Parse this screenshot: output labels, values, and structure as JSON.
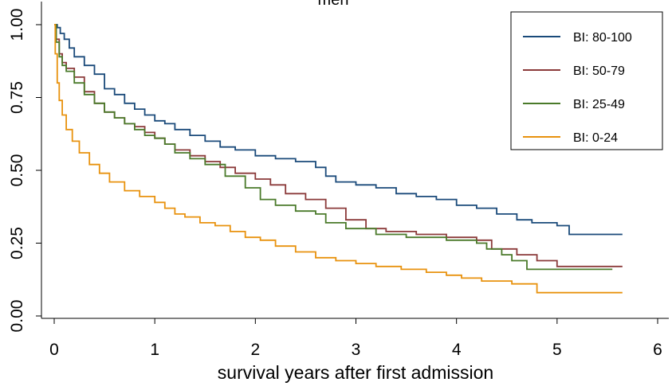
{
  "chart_data": {
    "type": "line",
    "title": "men",
    "xlabel": "survival years after first admission",
    "ylabel": "",
    "xlim": [
      0,
      6
    ],
    "ylim": [
      0,
      1
    ],
    "xticks": [
      0,
      1,
      2,
      3,
      4,
      5,
      6
    ],
    "xtick_labels": [
      "0",
      "1",
      "2",
      "3",
      "4",
      "5",
      "6"
    ],
    "yticks": [
      0,
      0.25,
      0.5,
      0.75,
      1.0
    ],
    "ytick_labels": [
      "0.00",
      "0.25",
      "0.50",
      "0.75",
      "1.00"
    ],
    "legend_position": "top-right",
    "step": true,
    "series": [
      {
        "name": "BI: 80-100",
        "color": "#1a4a7a",
        "x": [
          0,
          0.03,
          0.06,
          0.1,
          0.15,
          0.2,
          0.3,
          0.4,
          0.5,
          0.6,
          0.7,
          0.8,
          0.9,
          1.0,
          1.1,
          1.2,
          1.35,
          1.5,
          1.65,
          1.8,
          2.0,
          2.2,
          2.4,
          2.6,
          2.7,
          2.8,
          3.0,
          3.2,
          3.4,
          3.6,
          3.8,
          4.0,
          4.2,
          4.4,
          4.6,
          4.75,
          5.0,
          5.12,
          5.65
        ],
        "y": [
          1.0,
          0.99,
          0.97,
          0.95,
          0.92,
          0.89,
          0.86,
          0.83,
          0.78,
          0.76,
          0.73,
          0.71,
          0.69,
          0.67,
          0.66,
          0.64,
          0.62,
          0.6,
          0.58,
          0.57,
          0.55,
          0.54,
          0.53,
          0.51,
          0.48,
          0.46,
          0.45,
          0.44,
          0.42,
          0.41,
          0.4,
          0.38,
          0.37,
          0.35,
          0.33,
          0.32,
          0.31,
          0.28,
          0.28
        ]
      },
      {
        "name": "BI: 50-79",
        "color": "#8b3a3a",
        "x": [
          0,
          0.02,
          0.05,
          0.08,
          0.12,
          0.2,
          0.3,
          0.4,
          0.5,
          0.6,
          0.7,
          0.8,
          0.9,
          1.0,
          1.1,
          1.2,
          1.35,
          1.5,
          1.65,
          1.8,
          2.0,
          2.15,
          2.3,
          2.5,
          2.7,
          2.9,
          3.1,
          3.3,
          3.6,
          3.9,
          4.2,
          4.35,
          4.6,
          4.8,
          5.0,
          5.65
        ],
        "y": [
          1.0,
          0.95,
          0.9,
          0.87,
          0.85,
          0.82,
          0.77,
          0.73,
          0.7,
          0.68,
          0.66,
          0.65,
          0.63,
          0.61,
          0.59,
          0.57,
          0.55,
          0.53,
          0.51,
          0.49,
          0.47,
          0.45,
          0.42,
          0.4,
          0.37,
          0.33,
          0.3,
          0.29,
          0.28,
          0.27,
          0.26,
          0.23,
          0.21,
          0.19,
          0.17,
          0.17
        ]
      },
      {
        "name": "BI: 25-49",
        "color": "#4a7a2a",
        "x": [
          0,
          0.02,
          0.05,
          0.08,
          0.12,
          0.2,
          0.3,
          0.4,
          0.5,
          0.6,
          0.7,
          0.8,
          0.9,
          1.0,
          1.1,
          1.2,
          1.35,
          1.5,
          1.7,
          1.9,
          2.05,
          2.2,
          2.4,
          2.6,
          2.7,
          2.9,
          3.2,
          3.5,
          3.9,
          4.2,
          4.3,
          4.45,
          4.55,
          4.7,
          5.55
        ],
        "y": [
          1.0,
          0.94,
          0.89,
          0.86,
          0.84,
          0.8,
          0.76,
          0.73,
          0.7,
          0.68,
          0.66,
          0.64,
          0.62,
          0.61,
          0.59,
          0.56,
          0.54,
          0.52,
          0.48,
          0.44,
          0.4,
          0.38,
          0.36,
          0.35,
          0.32,
          0.3,
          0.28,
          0.27,
          0.26,
          0.25,
          0.23,
          0.21,
          0.19,
          0.16,
          0.16
        ]
      },
      {
        "name": "BI: 0-24",
        "color": "#e8920e",
        "x": [
          0,
          0.01,
          0.03,
          0.05,
          0.08,
          0.12,
          0.18,
          0.25,
          0.35,
          0.45,
          0.55,
          0.7,
          0.85,
          1.0,
          1.1,
          1.2,
          1.3,
          1.45,
          1.6,
          1.75,
          1.9,
          2.05,
          2.2,
          2.4,
          2.6,
          2.8,
          3.0,
          3.2,
          3.45,
          3.7,
          3.9,
          4.05,
          4.25,
          4.55,
          4.8,
          5.65
        ],
        "y": [
          1.0,
          0.9,
          0.8,
          0.74,
          0.69,
          0.64,
          0.6,
          0.56,
          0.52,
          0.49,
          0.46,
          0.43,
          0.41,
          0.39,
          0.37,
          0.35,
          0.34,
          0.32,
          0.31,
          0.29,
          0.27,
          0.26,
          0.24,
          0.22,
          0.2,
          0.19,
          0.18,
          0.17,
          0.16,
          0.15,
          0.14,
          0.13,
          0.12,
          0.11,
          0.08,
          0.08
        ]
      }
    ]
  }
}
